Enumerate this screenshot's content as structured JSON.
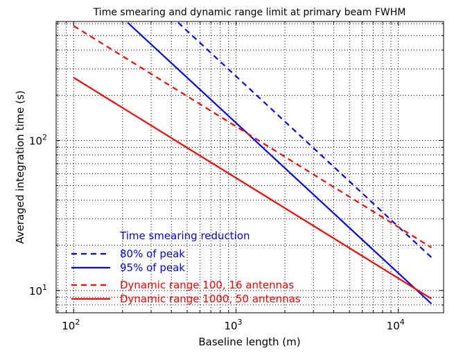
{
  "chart_data": {
    "type": "line",
    "title": "Time smearing and dynamic range limit at primary beam FWHM",
    "xlabel": "Baseline length (m)",
    "ylabel": "Averaged integration time (s)",
    "xscale": "log",
    "yscale": "log",
    "xlim": [
      78,
      19000
    ],
    "ylim": [
      7.1,
      620
    ],
    "grid": true,
    "x_ticks": [
      {
        "base": "10",
        "exp": "2",
        "value": 100
      },
      {
        "base": "10",
        "exp": "3",
        "value": 1000
      },
      {
        "base": "10",
        "exp": "4",
        "value": 10000
      }
    ],
    "y_ticks": [
      {
        "base": "10",
        "exp": "1",
        "value": 10
      },
      {
        "base": "10",
        "exp": "2",
        "value": 100
      }
    ],
    "legend": {
      "placement": "lower-left",
      "heading": "Time smearing reduction",
      "heading_color": "#0000ff"
    },
    "series": [
      {
        "name": "80% of peak",
        "color": "#0000ff",
        "dash": "dashed",
        "x": [
          440,
          16000
        ],
        "y": [
          610,
          16.6
        ]
      },
      {
        "name": "95% of peak",
        "color": "#0000ff",
        "dash": "solid",
        "x": [
          215,
          16000
        ],
        "y": [
          610,
          8.15
        ]
      },
      {
        "name": "Dynamic range 100, 16 antennas",
        "color": "#ff0000",
        "dash": "dashed",
        "x": [
          100,
          16000
        ],
        "y": [
          580,
          19.3
        ]
      },
      {
        "name": "Dynamic range 1000, 50 antennas",
        "color": "#ff0000",
        "dash": "solid",
        "x": [
          100,
          16000
        ],
        "y": [
          262,
          8.8
        ]
      }
    ]
  }
}
